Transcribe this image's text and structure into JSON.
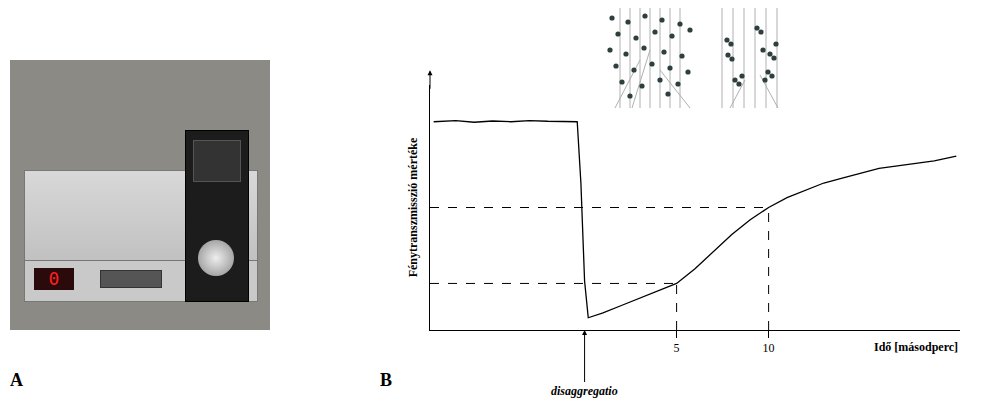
{
  "panels": {
    "A": {
      "label": "A",
      "device_display": "0"
    },
    "B": {
      "label": "B"
    }
  },
  "chart_data": {
    "type": "line",
    "x_label": "Idő [másodperc]",
    "y_label": "Fénytranszmisszió mértéke",
    "x": [
      -8.2,
      -7,
      -6,
      -5,
      -4,
      -3,
      -2,
      -1,
      -0.4,
      -0.2,
      0,
      0.2,
      1,
      2,
      3,
      4,
      5,
      6,
      7,
      8,
      9,
      10,
      11,
      12,
      13,
      14,
      15,
      16,
      17,
      18,
      19,
      20.2
    ],
    "values": [
      85,
      85.5,
      84.8,
      85.3,
      85,
      85.5,
      85.2,
      85,
      85,
      60,
      20,
      5,
      7,
      10,
      13,
      16,
      19,
      25,
      32,
      39,
      45,
      50,
      54,
      57,
      60,
      62,
      64,
      66,
      67,
      68,
      69,
      71
    ],
    "color": "#000000",
    "xlim": [
      -8.4,
      20.4
    ],
    "xticks": [
      5,
      10
    ],
    "ylim": [
      0,
      100
    ],
    "yticks": [],
    "tick_labels": "x",
    "grid": false,
    "guide_points": [
      {
        "x": 5,
        "y": 19
      },
      {
        "x": 10,
        "y": 50
      }
    ],
    "annotations": [
      {
        "text": "disaggregatio",
        "x": 0
      }
    ]
  }
}
